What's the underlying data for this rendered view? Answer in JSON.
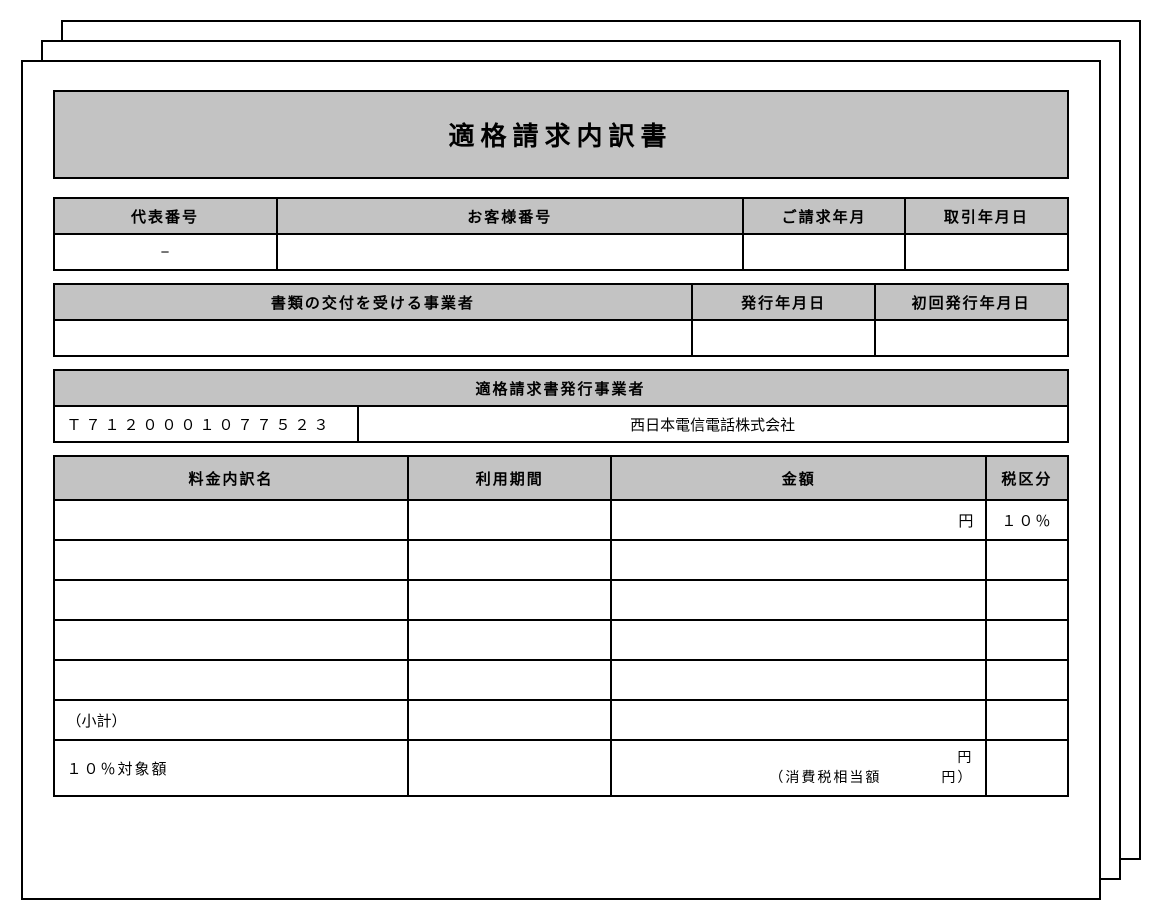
{
  "colors": {
    "header_bg": "#c3c3c3",
    "border": "#000000",
    "page_bg": "#ffffff"
  },
  "title": "適格請求内訳書",
  "info_table": {
    "headers": {
      "rep_number": "代表番号",
      "customer_number": "お客様番号",
      "billing_month": "ご請求年月",
      "transaction_date": "取引年月日"
    },
    "values": {
      "rep_number": "−",
      "customer_number": "",
      "billing_month": "",
      "transaction_date": ""
    },
    "col_widths": [
      "22%",
      "46%",
      "16%",
      "16%"
    ]
  },
  "recipient_table": {
    "headers": {
      "recipient": "書類の交付を受ける事業者",
      "issue_date": "発行年月日",
      "first_issue_date": "初回発行年月日"
    },
    "values": {
      "recipient": "",
      "issue_date": "",
      "first_issue_date": ""
    },
    "col_widths": [
      "63%",
      "18%",
      "19%"
    ]
  },
  "issuer_table": {
    "header": "適格請求書発行事業者",
    "registration_number": "Ｔ７１２０００１０７７５２３",
    "issuer_name": "西日本電信電話株式会社",
    "col_widths": [
      "30%",
      "70%"
    ]
  },
  "breakdown_table": {
    "headers": {
      "item_name": "料金内訳名",
      "usage_period": "利用期間",
      "amount": "金額",
      "tax_category": "税区分"
    },
    "col_widths": [
      "35%",
      "20%",
      "37%",
      "8%"
    ],
    "rows": [
      {
        "item_name": "",
        "usage_period": "",
        "amount": "円",
        "tax_category": "１０％"
      },
      {
        "item_name": "",
        "usage_period": "",
        "amount": "",
        "tax_category": ""
      },
      {
        "item_name": "",
        "usage_period": "",
        "amount": "",
        "tax_category": ""
      },
      {
        "item_name": "",
        "usage_period": "",
        "amount": "",
        "tax_category": ""
      },
      {
        "item_name": "",
        "usage_period": "",
        "amount": "",
        "tax_category": ""
      }
    ],
    "subtotal_label": "（小計）",
    "tax_row": {
      "label": "１０％対象額",
      "amount_line1": "円",
      "amount_line2_prefix": "（消費税相当額",
      "amount_line2_suffix": "円）"
    }
  }
}
